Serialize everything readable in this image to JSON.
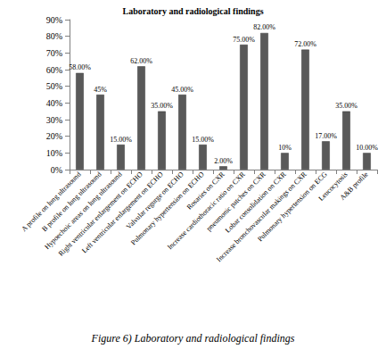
{
  "chart_data": {
    "type": "bar",
    "title": "Laboratory and radiological findings",
    "caption": "Figure 6) Laboratory and radiological findings",
    "categories": [
      "A profile on lung ultrasound",
      "B profile on lung ultrasound",
      "Hypoechoic areas on lung ultrasound",
      "Right ventricular enlargement on ECHO",
      "Left ventricular enlargement on ECHO",
      "Valvular regurge on ECHO",
      "Pulmonary hypertension on ECHO",
      "Rosaries on CXR",
      "Increase cardiothoracic ratio on CXR",
      "pneumonic patches on CXR",
      "Lobar consolidation on CXR",
      "Increase bronchovascular makings on CXR",
      "Pulmonary hypertension on ECG",
      "Leucocytosis",
      "A&B profile"
    ],
    "values": [
      58,
      45,
      15,
      62,
      35,
      45,
      15,
      2,
      75,
      82,
      10,
      72,
      17,
      35,
      10
    ],
    "value_labels": [
      "58.00%",
      "45%",
      "15.00%",
      "62.00%",
      "35.00%",
      "45.00%",
      "15.00%",
      "2.00%",
      "75.00%",
      "82.00%",
      "10%",
      "72.00%",
      "17.00%",
      "35.00%",
      "10.00%"
    ],
    "data_labels": true,
    "color": "#595959",
    "ylim": [
      0,
      90
    ],
    "yticks": [
      {
        "value": 0,
        "label": "0%"
      },
      {
        "value": 10,
        "label": "10%"
      },
      {
        "value": 20,
        "label": "20%"
      },
      {
        "value": 30,
        "label": "30%"
      },
      {
        "value": 40,
        "label": "40%"
      },
      {
        "value": 50,
        "label": "50%"
      },
      {
        "value": 60,
        "label": "60%"
      },
      {
        "value": 70,
        "label": "70%"
      },
      {
        "value": 80,
        "label": "80%"
      },
      {
        "value": 90,
        "label": "90%"
      }
    ],
    "grid": false
  }
}
